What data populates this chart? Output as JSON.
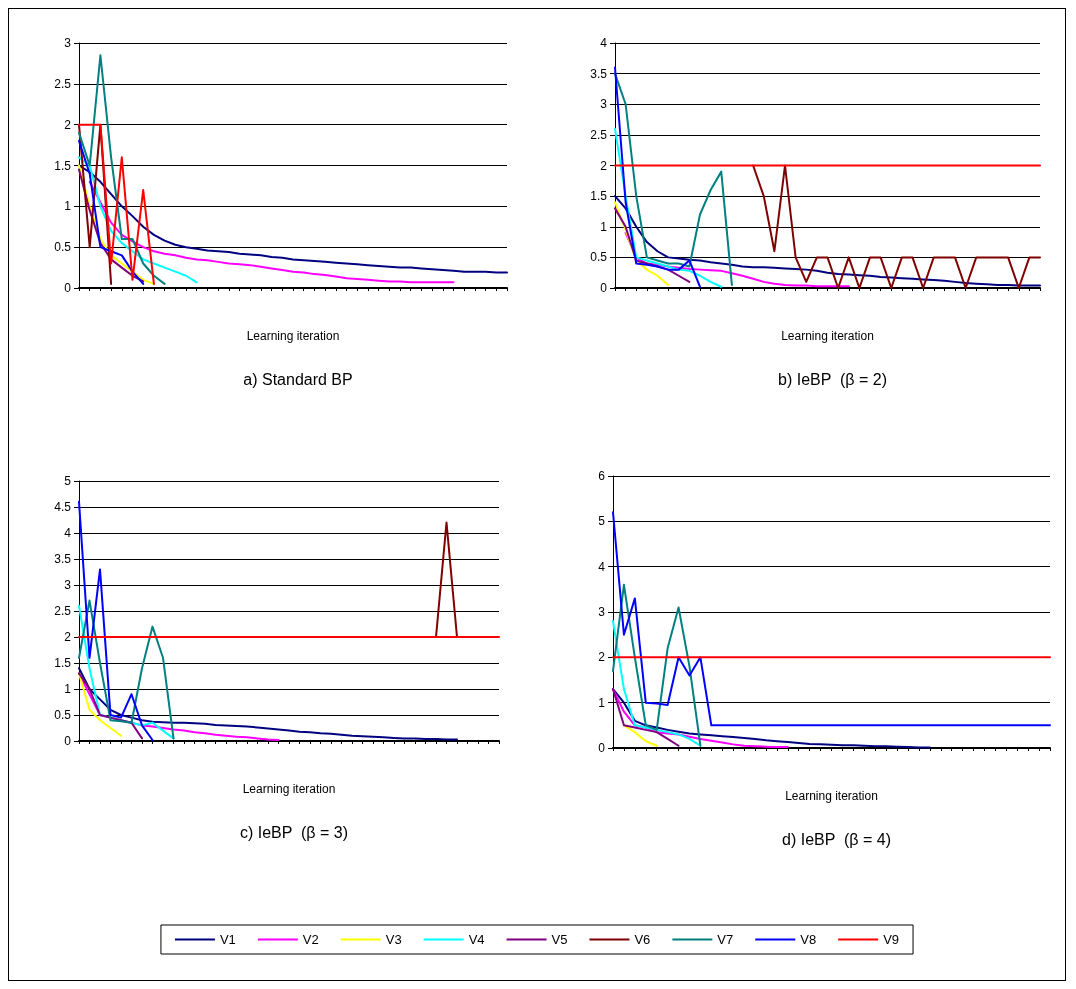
{
  "chart_data": [
    {
      "type": "line",
      "title": "a) Standard BP",
      "xlabel": "Learning iteration",
      "categories": [
        null,
        null,
        null,
        null,
        null,
        null,
        null,
        null,
        null,
        null,
        null,
        null,
        null,
        null,
        null,
        null,
        null,
        null,
        null,
        null,
        null,
        null,
        null,
        null,
        null,
        null,
        null,
        null,
        null,
        null,
        null,
        null,
        null,
        null,
        null,
        null,
        null,
        null,
        null,
        null,
        null
      ],
      "ylim": [
        0,
        3
      ],
      "yticks": [
        0,
        0.5,
        1,
        1.5,
        2,
        2.5,
        3
      ],
      "grid": "y",
      "legend": "bottom",
      "marker": "none",
      "line_style": "solid",
      "series": [
        {
          "name": "V1",
          "color": "#000080",
          "values": [
            1.5,
            1.42,
            1.3,
            1.15,
            1.0,
            0.88,
            0.75,
            0.65,
            0.58,
            0.53,
            0.5,
            0.48,
            0.46,
            0.45,
            0.44,
            0.42,
            0.41,
            0.4,
            0.38,
            0.37,
            0.35,
            0.34,
            0.33,
            0.32,
            0.31,
            0.3,
            0.29,
            0.28,
            0.27,
            0.26,
            0.25,
            0.25,
            0.24,
            0.23,
            0.22,
            0.21,
            0.2,
            0.2,
            0.2,
            0.19,
            0.19
          ]
        },
        {
          "name": "V2",
          "color": "#ff00ff",
          "values": [
            null,
            1.3,
            1.05,
            0.8,
            0.65,
            0.57,
            0.5,
            0.45,
            0.42,
            0.4,
            0.37,
            0.35,
            0.34,
            0.32,
            0.3,
            0.29,
            0.28,
            0.26,
            0.24,
            0.22,
            0.2,
            0.19,
            0.17,
            0.16,
            0.14,
            0.12,
            0.11,
            0.1,
            0.09,
            0.08,
            0.08,
            0.07,
            0.07,
            0.07,
            0.07,
            0.07,
            null,
            null,
            null,
            null,
            null
          ]
        },
        {
          "name": "V3",
          "color": "#ffff00",
          "values": [
            1.5,
            1.0,
            0.6,
            0.4,
            0.3,
            0.2,
            0.1,
            0.05,
            null,
            null,
            null,
            null,
            null,
            null,
            null,
            null,
            null,
            null,
            null,
            null,
            null,
            null,
            null,
            null,
            null,
            null,
            null,
            null,
            null,
            null,
            null,
            null,
            null,
            null,
            null,
            null,
            null,
            null,
            null,
            null,
            null
          ]
        },
        {
          "name": "V4",
          "color": "#00ffff",
          "values": [
            1.6,
            1.5,
            1.0,
            0.7,
            0.55,
            0.45,
            0.35,
            0.3,
            0.25,
            0.2,
            0.15,
            0.07,
            null,
            null,
            null,
            null,
            null,
            null,
            null,
            null,
            null,
            null,
            null,
            null,
            null,
            null,
            null,
            null,
            null,
            null,
            null,
            null,
            null,
            null,
            null,
            null,
            null,
            null,
            null,
            null,
            null
          ]
        },
        {
          "name": "V5",
          "color": "#800080",
          "values": [
            1.45,
            0.95,
            0.55,
            0.35,
            0.25,
            0.15,
            0.08,
            null,
            null,
            null,
            null,
            null,
            null,
            null,
            null,
            null,
            null,
            null,
            null,
            null,
            null,
            null,
            null,
            null,
            null,
            null,
            null,
            null,
            null,
            null,
            null,
            null,
            null,
            null,
            null,
            null,
            null,
            null,
            null,
            null,
            null
          ]
        },
        {
          "name": "V6",
          "color": "#800000",
          "values": [
            2.0,
            0.5,
            2.0,
            0.05,
            null,
            null,
            null,
            null,
            null,
            null,
            null,
            null,
            null,
            null,
            null,
            null,
            null,
            null,
            null,
            null,
            null,
            null,
            null,
            null,
            null,
            null,
            null,
            null,
            null,
            null,
            null,
            null,
            null,
            null,
            null,
            null,
            null,
            null,
            null,
            null,
            null
          ]
        },
        {
          "name": "V7",
          "color": "#008080",
          "values": [
            1.9,
            1.5,
            2.85,
            1.6,
            0.6,
            0.6,
            0.3,
            0.15,
            0.05,
            null,
            null,
            null,
            null,
            null,
            null,
            null,
            null,
            null,
            null,
            null,
            null,
            null,
            null,
            null,
            null,
            null,
            null,
            null,
            null,
            null,
            null,
            null,
            null,
            null,
            null,
            null,
            null,
            null,
            null,
            null,
            null
          ]
        },
        {
          "name": "V8",
          "color": "#0000ff",
          "values": [
            1.8,
            1.4,
            0.5,
            0.45,
            0.4,
            0.2,
            0.05,
            null,
            null,
            null,
            null,
            null,
            null,
            null,
            null,
            null,
            null,
            null,
            null,
            null,
            null,
            null,
            null,
            null,
            null,
            null,
            null,
            null,
            null,
            null,
            null,
            null,
            null,
            null,
            null,
            null,
            null,
            null,
            null,
            null,
            null
          ]
        },
        {
          "name": "V9",
          "color": "#ff0000",
          "values": [
            2.0,
            2.0,
            2.0,
            0.3,
            1.6,
            0.1,
            1.2,
            0.05,
            null,
            null,
            null,
            null,
            null,
            null,
            null,
            null,
            null,
            null,
            null,
            null,
            null,
            null,
            null,
            null,
            null,
            null,
            null,
            null,
            null,
            null,
            null,
            null,
            null,
            null,
            null,
            null,
            null,
            null,
            null,
            null,
            null
          ]
        }
      ]
    },
    {
      "type": "line",
      "title": "b) IeBP  (β = 2)",
      "xlabel": "Learning iteration",
      "categories": [
        null,
        null,
        null,
        null,
        null,
        null,
        null,
        null,
        null,
        null,
        null,
        null,
        null,
        null,
        null,
        null,
        null,
        null,
        null,
        null,
        null,
        null,
        null,
        null,
        null,
        null,
        null,
        null,
        null,
        null,
        null,
        null,
        null,
        null,
        null,
        null,
        null,
        null,
        null,
        null,
        null
      ],
      "ylim": [
        0,
        4
      ],
      "yticks": [
        0,
        0.5,
        1,
        1.5,
        2,
        2.5,
        3,
        3.5,
        4
      ],
      "grid": "y",
      "legend": "bottom",
      "marker": "none",
      "line_style": "solid",
      "series": [
        {
          "name": "V1",
          "color": "#000080",
          "values": [
            1.5,
            1.3,
            1.0,
            0.75,
            0.6,
            0.5,
            0.48,
            0.46,
            0.45,
            0.42,
            0.4,
            0.38,
            0.35,
            0.34,
            0.34,
            0.33,
            0.32,
            0.31,
            0.3,
            0.28,
            0.25,
            0.23,
            0.22,
            0.21,
            0.2,
            0.18,
            0.17,
            0.16,
            0.15,
            0.14,
            0.13,
            0.12,
            0.1,
            0.08,
            0.07,
            0.06,
            0.05,
            0.05,
            0.04,
            0.04,
            0.04
          ]
        },
        {
          "name": "V2",
          "color": "#ff00ff",
          "values": [
            null,
            0.9,
            0.5,
            0.4,
            0.38,
            0.35,
            0.33,
            0.31,
            0.3,
            0.29,
            0.28,
            0.24,
            0.2,
            0.15,
            0.1,
            0.07,
            0.05,
            0.04,
            0.04,
            0.03,
            0.03,
            0.03,
            0.03,
            null,
            null,
            null,
            null,
            null,
            null,
            null,
            null,
            null,
            null,
            null,
            null,
            null,
            null,
            null,
            null,
            null,
            null
          ]
        },
        {
          "name": "V3",
          "color": "#ffff00",
          "values": [
            1.4,
            0.95,
            0.45,
            0.3,
            0.2,
            0.05,
            null,
            null,
            null,
            null,
            null,
            null,
            null,
            null,
            null,
            null,
            null,
            null,
            null,
            null,
            null,
            null,
            null,
            null,
            null,
            null,
            null,
            null,
            null,
            null,
            null,
            null,
            null,
            null,
            null,
            null,
            null,
            null,
            null,
            null,
            null
          ]
        },
        {
          "name": "V4",
          "color": "#00ffff",
          "values": [
            2.6,
            1.5,
            0.5,
            0.45,
            0.4,
            0.35,
            0.3,
            0.28,
            0.2,
            0.1,
            0.02,
            null,
            null,
            null,
            null,
            null,
            null,
            null,
            null,
            null,
            null,
            null,
            null,
            null,
            null,
            null,
            null,
            null,
            null,
            null,
            null,
            null,
            null,
            null,
            null,
            null,
            null,
            null,
            null,
            null,
            null
          ]
        },
        {
          "name": "V5",
          "color": "#800080",
          "values": [
            1.3,
            1.0,
            0.45,
            0.4,
            0.35,
            0.3,
            0.2,
            0.1,
            null,
            null,
            null,
            null,
            null,
            null,
            null,
            null,
            null,
            null,
            null,
            null,
            null,
            null,
            null,
            null,
            null,
            null,
            null,
            null,
            null,
            null,
            null,
            null,
            null,
            null,
            null,
            null,
            null,
            null,
            null,
            null,
            null
          ]
        },
        {
          "name": "V6",
          "color": "#800000",
          "values": [
            null,
            null,
            null,
            null,
            null,
            null,
            null,
            null,
            null,
            null,
            null,
            null,
            null,
            2.0,
            1.5,
            0.6,
            2.0,
            0.5,
            0.1,
            0.5,
            0.5,
            0.0,
            0.5,
            0.0,
            0.5,
            0.5,
            0.0,
            0.5,
            0.5,
            0.0,
            0.5,
            0.5,
            0.5,
            0.0,
            0.5,
            0.5,
            0.5,
            0.5,
            0.0,
            0.5,
            0.5
          ]
        },
        {
          "name": "V7",
          "color": "#008080",
          "values": [
            3.5,
            3.0,
            1.5,
            0.5,
            0.45,
            0.4,
            0.4,
            0.35,
            1.2,
            1.6,
            1.9,
            0.05,
            null,
            null,
            null,
            null,
            null,
            null,
            null,
            null,
            null,
            null,
            null,
            null,
            null,
            null,
            null,
            null,
            null,
            null,
            null,
            null,
            null,
            null,
            null,
            null,
            null,
            null,
            null,
            null,
            null
          ]
        },
        {
          "name": "V8",
          "color": "#0000ff",
          "values": [
            3.6,
            1.4,
            0.4,
            0.38,
            0.35,
            0.3,
            0.3,
            0.45,
            0.02,
            null,
            null,
            null,
            null,
            null,
            null,
            null,
            null,
            null,
            null,
            null,
            null,
            null,
            null,
            null,
            null,
            null,
            null,
            null,
            null,
            null,
            null,
            null,
            null,
            null,
            null,
            null,
            null,
            null,
            null,
            null,
            null
          ]
        },
        {
          "name": "V9",
          "color": "#ff0000",
          "values": [
            2,
            2,
            2,
            2,
            2,
            2,
            2,
            2,
            2,
            2,
            2,
            2,
            2,
            2,
            2,
            2,
            2,
            2,
            2,
            2,
            2,
            2,
            2,
            2,
            2,
            2,
            2,
            2,
            2,
            2,
            2,
            2,
            2,
            2,
            2,
            2,
            2,
            2,
            2,
            2,
            2
          ]
        }
      ]
    },
    {
      "type": "line",
      "title": "c) IeBP  (β = 3)",
      "xlabel": "Learning iteration",
      "categories": [
        null,
        null,
        null,
        null,
        null,
        null,
        null,
        null,
        null,
        null,
        null,
        null,
        null,
        null,
        null,
        null,
        null,
        null,
        null,
        null,
        null,
        null,
        null,
        null,
        null,
        null,
        null,
        null,
        null,
        null,
        null,
        null,
        null,
        null,
        null,
        null,
        null,
        null,
        null,
        null,
        null
      ],
      "ylim": [
        0,
        5
      ],
      "yticks": [
        0,
        0.5,
        1,
        1.5,
        2,
        2.5,
        3,
        3.5,
        4,
        4.5,
        5
      ],
      "grid": "y",
      "legend": "bottom",
      "marker": "none",
      "line_style": "solid",
      "series": [
        {
          "name": "V1",
          "color": "#000080",
          "values": [
            1.4,
            1.0,
            0.8,
            0.6,
            0.5,
            0.45,
            0.4,
            0.37,
            0.36,
            0.35,
            0.35,
            0.34,
            0.33,
            0.31,
            0.3,
            0.29,
            0.28,
            0.26,
            0.24,
            0.22,
            0.2,
            0.18,
            0.17,
            0.15,
            0.14,
            0.12,
            0.1,
            0.09,
            0.08,
            0.07,
            0.06,
            0.05,
            0.05,
            0.04,
            0.04,
            0.03,
            0.03,
            null,
            null,
            null,
            null
          ]
        },
        {
          "name": "V2",
          "color": "#ff00ff",
          "values": [
            1.3,
            0.9,
            0.5,
            0.45,
            0.4,
            0.35,
            0.3,
            0.28,
            0.25,
            0.22,
            0.2,
            0.17,
            0.15,
            0.12,
            0.1,
            0.08,
            0.07,
            0.05,
            0.03,
            0.02,
            null,
            null,
            null,
            null,
            null,
            null,
            null,
            null,
            null,
            null,
            null,
            null,
            null,
            null,
            null,
            null,
            null,
            null,
            null,
            null,
            null
          ]
        },
        {
          "name": "V3",
          "color": "#ffff00",
          "values": [
            1.3,
            0.6,
            0.4,
            0.25,
            0.1,
            null,
            null,
            null,
            null,
            null,
            null,
            null,
            null,
            null,
            null,
            null,
            null,
            null,
            null,
            null,
            null,
            null,
            null,
            null,
            null,
            null,
            null,
            null,
            null,
            null,
            null,
            null,
            null,
            null,
            null,
            null,
            null,
            null,
            null,
            null,
            null
          ]
        },
        {
          "name": "V4",
          "color": "#00ffff",
          "values": [
            2.6,
            1.4,
            0.5,
            0.45,
            0.4,
            0.35,
            0.3,
            0.35,
            0.2,
            0.05,
            null,
            null,
            null,
            null,
            null,
            null,
            null,
            null,
            null,
            null,
            null,
            null,
            null,
            null,
            null,
            null,
            null,
            null,
            null,
            null,
            null,
            null,
            null,
            null,
            null,
            null,
            null,
            null,
            null,
            null,
            null
          ]
        },
        {
          "name": "V5",
          "color": "#800080",
          "values": [
            1.3,
            1.0,
            0.5,
            0.45,
            0.4,
            0.35,
            0.05,
            null,
            null,
            null,
            null,
            null,
            null,
            null,
            null,
            null,
            null,
            null,
            null,
            null,
            null,
            null,
            null,
            null,
            null,
            null,
            null,
            null,
            null,
            null,
            null,
            null,
            null,
            null,
            null,
            null,
            null,
            null,
            null,
            null,
            null
          ]
        },
        {
          "name": "V6",
          "color": "#800000",
          "values": [
            null,
            null,
            null,
            null,
            null,
            null,
            null,
            null,
            null,
            null,
            null,
            null,
            null,
            null,
            null,
            null,
            null,
            null,
            null,
            null,
            null,
            null,
            null,
            null,
            null,
            null,
            null,
            null,
            null,
            null,
            null,
            null,
            null,
            null,
            2.0,
            4.2,
            2.0,
            null,
            null,
            null,
            null
          ]
        },
        {
          "name": "V7",
          "color": "#008080",
          "values": [
            1.6,
            2.7,
            1.5,
            0.4,
            0.38,
            0.35,
            1.4,
            2.2,
            1.6,
            0.05,
            null,
            null,
            null,
            null,
            null,
            null,
            null,
            null,
            null,
            null,
            null,
            null,
            null,
            null,
            null,
            null,
            null,
            null,
            null,
            null,
            null,
            null,
            null,
            null,
            null,
            null,
            null,
            null,
            null,
            null,
            null
          ]
        },
        {
          "name": "V8",
          "color": "#0000ff",
          "values": [
            4.6,
            1.6,
            3.3,
            0.5,
            0.45,
            0.9,
            0.3,
            0.02,
            null,
            null,
            null,
            null,
            null,
            null,
            null,
            null,
            null,
            null,
            null,
            null,
            null,
            null,
            null,
            null,
            null,
            null,
            null,
            null,
            null,
            null,
            null,
            null,
            null,
            null,
            null,
            null,
            null,
            null,
            null,
            null,
            null
          ]
        },
        {
          "name": "V9",
          "color": "#ff0000",
          "values": [
            2,
            2,
            2,
            2,
            2,
            2,
            2,
            2,
            2,
            2,
            2,
            2,
            2,
            2,
            2,
            2,
            2,
            2,
            2,
            2,
            2,
            2,
            2,
            2,
            2,
            2,
            2,
            2,
            2,
            2,
            2,
            2,
            2,
            2,
            2,
            2,
            2,
            2,
            2,
            2,
            2
          ]
        }
      ]
    },
    {
      "type": "line",
      "title": "d) IeBP  (β = 4)",
      "xlabel": "Learning iteration",
      "categories": [
        null,
        null,
        null,
        null,
        null,
        null,
        null,
        null,
        null,
        null,
        null,
        null,
        null,
        null,
        null,
        null,
        null,
        null,
        null,
        null,
        null,
        null,
        null,
        null,
        null,
        null,
        null,
        null,
        null,
        null,
        null,
        null,
        null,
        null,
        null,
        null,
        null,
        null,
        null,
        null,
        null
      ],
      "ylim": [
        0,
        6
      ],
      "yticks": [
        0,
        1,
        2,
        3,
        4,
        5,
        6
      ],
      "grid": "y",
      "legend": "bottom",
      "marker": "none",
      "line_style": "solid",
      "series": [
        {
          "name": "V1",
          "color": "#000080",
          "values": [
            1.3,
            1.0,
            0.6,
            0.5,
            0.45,
            0.4,
            0.36,
            0.32,
            0.3,
            0.28,
            0.26,
            0.24,
            0.22,
            0.2,
            0.17,
            0.15,
            0.13,
            0.11,
            0.09,
            0.08,
            0.07,
            0.06,
            0.06,
            0.05,
            0.04,
            0.04,
            0.03,
            0.02,
            0.01,
            0.01,
            null,
            null,
            null,
            null,
            null,
            null,
            null,
            null,
            null,
            null,
            null
          ]
        },
        {
          "name": "V2",
          "color": "#ff00ff",
          "values": [
            1.3,
            0.8,
            0.5,
            0.45,
            0.35,
            0.32,
            0.3,
            0.25,
            0.2,
            0.16,
            0.12,
            0.08,
            0.05,
            0.04,
            0.03,
            0.02,
            0.02,
            null,
            null,
            null,
            null,
            null,
            null,
            null,
            null,
            null,
            null,
            null,
            null,
            null,
            null,
            null,
            null,
            null,
            null,
            null,
            null,
            null,
            null,
            null,
            null
          ]
        },
        {
          "name": "V3",
          "color": "#ffff00",
          "values": [
            null,
            0.5,
            0.35,
            0.15,
            0.05,
            null,
            null,
            null,
            null,
            null,
            null,
            null,
            null,
            null,
            null,
            null,
            null,
            null,
            null,
            null,
            null,
            null,
            null,
            null,
            null,
            null,
            null,
            null,
            null,
            null,
            null,
            null,
            null,
            null,
            null,
            null,
            null,
            null,
            null,
            null,
            null
          ]
        },
        {
          "name": "V4",
          "color": "#00ffff",
          "values": [
            2.8,
            1.3,
            0.5,
            0.45,
            0.4,
            0.35,
            0.3,
            0.2,
            0.05,
            null,
            null,
            null,
            null,
            null,
            null,
            null,
            null,
            null,
            null,
            null,
            null,
            null,
            null,
            null,
            null,
            null,
            null,
            null,
            null,
            null,
            null,
            null,
            null,
            null,
            null,
            null,
            null,
            null,
            null,
            null,
            null
          ]
        },
        {
          "name": "V5",
          "color": "#800080",
          "values": [
            1.3,
            0.5,
            0.45,
            0.4,
            0.35,
            0.2,
            0.05,
            null,
            null,
            null,
            null,
            null,
            null,
            null,
            null,
            null,
            null,
            null,
            null,
            null,
            null,
            null,
            null,
            null,
            null,
            null,
            null,
            null,
            null,
            null,
            null,
            null,
            null,
            null,
            null,
            null,
            null,
            null,
            null,
            null,
            null
          ]
        },
        {
          "name": "V7",
          "color": "#008080",
          "values": [
            1.7,
            3.6,
            2.0,
            0.5,
            0.4,
            2.2,
            3.1,
            1.8,
            0.05,
            null,
            null,
            null,
            null,
            null,
            null,
            null,
            null,
            null,
            null,
            null,
            null,
            null,
            null,
            null,
            null,
            null,
            null,
            null,
            null,
            null,
            null,
            null,
            null,
            null,
            null,
            null,
            null,
            null,
            null,
            null,
            null
          ]
        },
        {
          "name": "V8",
          "color": "#0000ff",
          "values": [
            5.2,
            2.5,
            3.3,
            1.0,
            0.98,
            0.95,
            2.0,
            1.6,
            2.0,
            0.5,
            0.5,
            0.5,
            0.5,
            0.5,
            0.5,
            0.5,
            0.5,
            0.5,
            0.5,
            0.5,
            0.5,
            0.5,
            0.5,
            0.5,
            0.5,
            0.5,
            0.5,
            0.5,
            0.5,
            0.5,
            0.5,
            0.5,
            0.5,
            0.5,
            0.5,
            0.5,
            0.5,
            0.5,
            0.5,
            0.5,
            0.5
          ]
        },
        {
          "name": "V9",
          "color": "#ff0000",
          "values": [
            2,
            2,
            2,
            2,
            2,
            2,
            2,
            2,
            2,
            2,
            2,
            2,
            2,
            2,
            2,
            2,
            2,
            2,
            2,
            2,
            2,
            2,
            2,
            2,
            2,
            2,
            2,
            2,
            2,
            2,
            2,
            2,
            2,
            2,
            2,
            2,
            2,
            2,
            2,
            2,
            2
          ]
        }
      ]
    }
  ]
}
